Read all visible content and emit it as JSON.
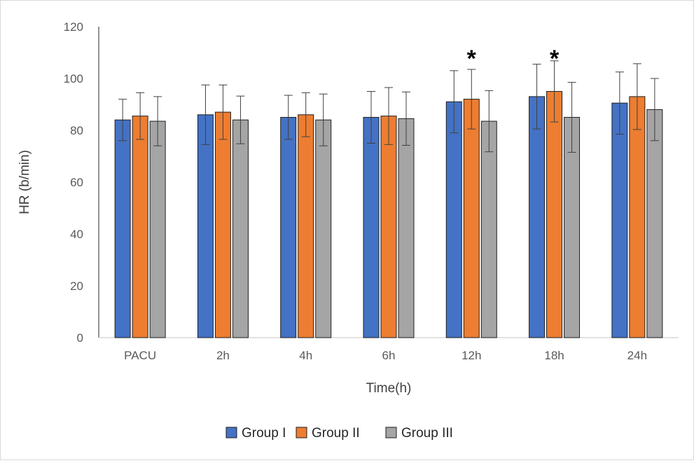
{
  "chart_data": {
    "type": "bar",
    "title": "",
    "xlabel": "Time(h)",
    "ylabel": "HR (b/min)",
    "ylim": [
      0,
      120
    ],
    "yticks": [
      "0",
      "20",
      "40",
      "60",
      "80",
      "100",
      "120"
    ],
    "categories": [
      "PACU",
      "2h",
      "4h",
      "6h",
      "12h",
      "18h",
      "24h"
    ],
    "series": [
      {
        "name": "Group I",
        "color": "#4472c4",
        "values": [
          84,
          86,
          85,
          85,
          91,
          93,
          90.5
        ],
        "errors": [
          8,
          11.5,
          8.5,
          10,
          12,
          12.5,
          12
        ]
      },
      {
        "name": "Group II",
        "color": "#ed7d31",
        "values": [
          85.5,
          87,
          86,
          85.5,
          92,
          95,
          93
        ],
        "errors": [
          9,
          10.5,
          8.5,
          11,
          11.5,
          11.8,
          12.7
        ]
      },
      {
        "name": "Group III",
        "color": "#a5a5a5",
        "values": [
          83.5,
          84,
          84,
          84.5,
          83.5,
          85,
          88
        ],
        "errors": [
          9.5,
          9.2,
          10,
          10.3,
          11.8,
          13.5,
          12
        ]
      }
    ],
    "annotations": [
      {
        "text": "*",
        "category": "12h"
      },
      {
        "text": "*",
        "category": "18h"
      }
    ],
    "grid": false,
    "legend_position": "bottom"
  }
}
